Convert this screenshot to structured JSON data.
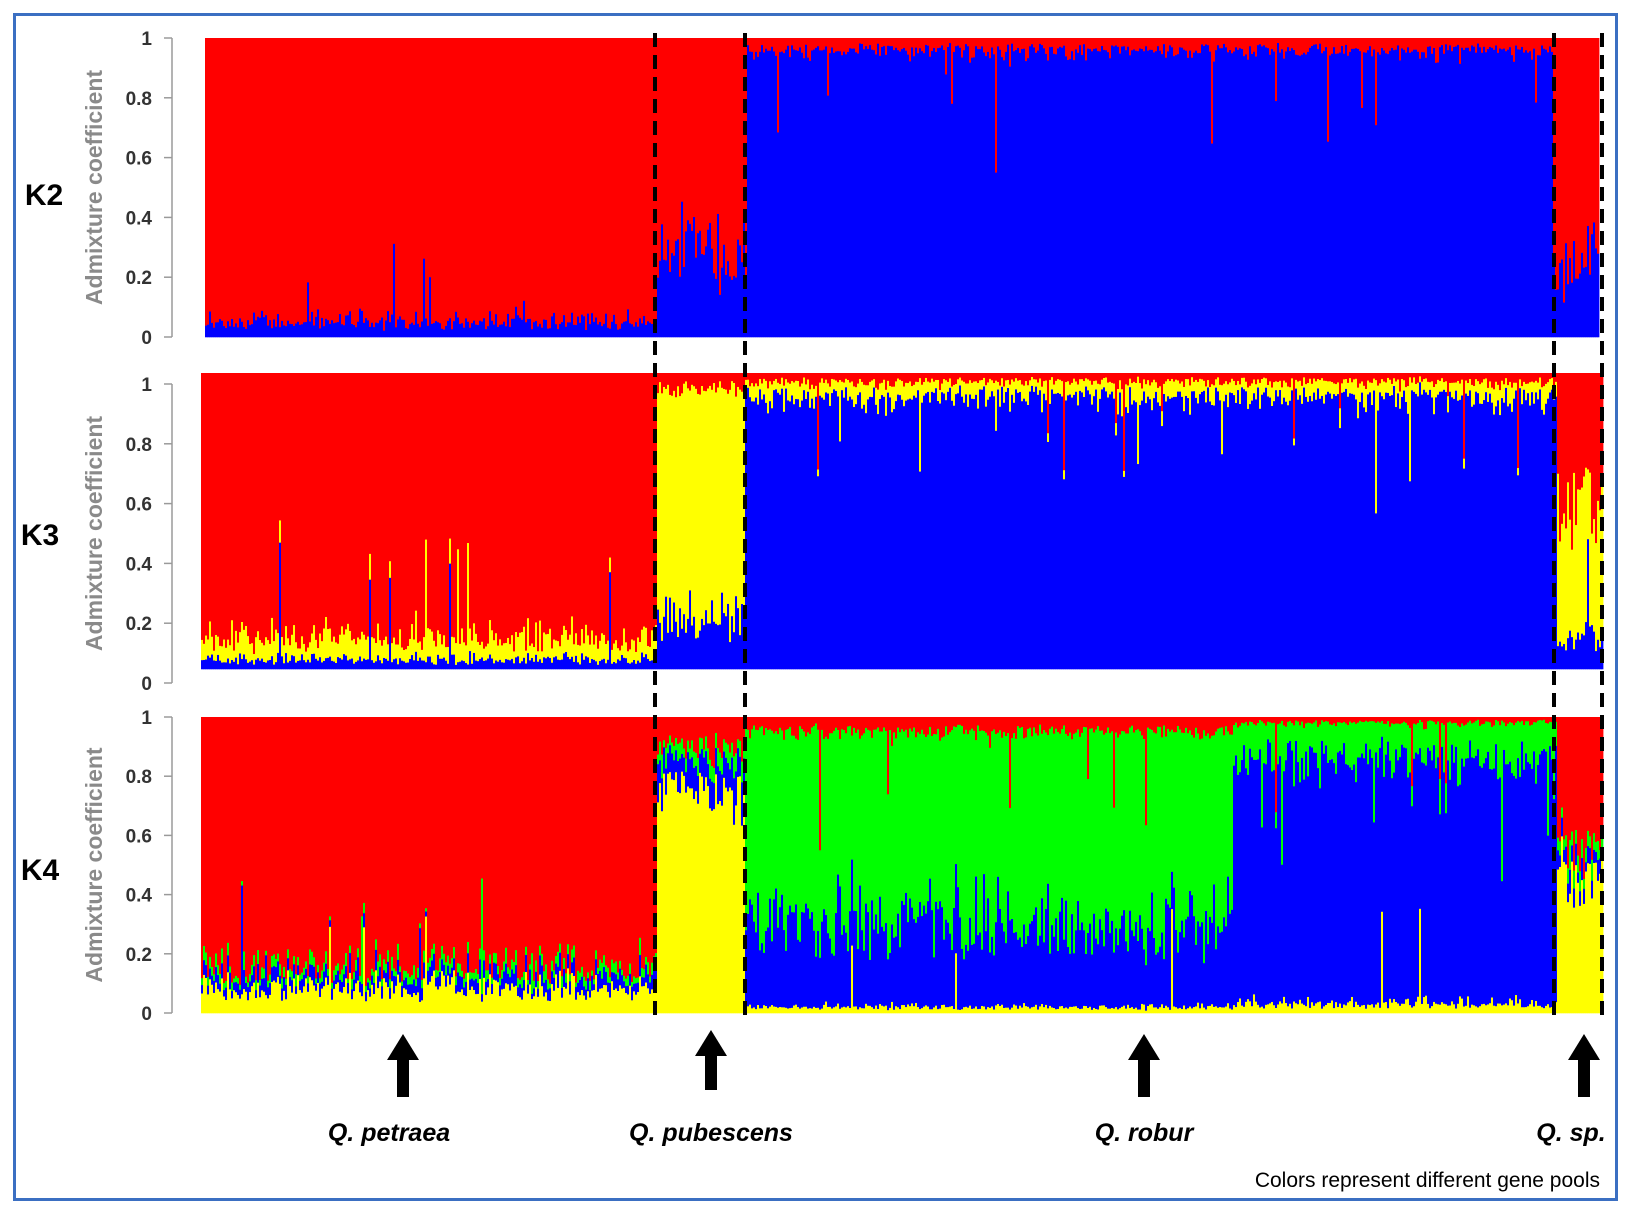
{
  "chart_data": {
    "type": "stacked-bar",
    "description_caption": "Colors represent different gene pools",
    "ylabel": "Admixture coefficient",
    "ylim": [
      0,
      1
    ],
    "yticks": [
      "0",
      "0.2",
      "0.4",
      "0.6",
      "0.8",
      "1"
    ],
    "colors": {
      "red": "#ff0000",
      "blue": "#0000ff",
      "yellow": "#ffff00",
      "green": "#00ff00"
    },
    "groups": [
      {
        "name": "Q. petraea",
        "start": 0.0,
        "end": 0.324
      },
      {
        "name": "Q. pubescens",
        "start": 0.324,
        "end": 0.388
      },
      {
        "name": "Q. robur",
        "start": 0.388,
        "end": 0.966
      },
      {
        "name": "Q. sp.",
        "start": 0.966,
        "end": 1.0
      }
    ],
    "panels": [
      {
        "label": "K2",
        "series": [
          "red",
          "blue"
        ],
        "segments": [
          {
            "group": "Q. petraea",
            "mean": {
              "red": 0.95,
              "blue": 0.05
            }
          },
          {
            "group": "Q. pubescens",
            "mean": {
              "red": 0.72,
              "blue": 0.28
            }
          },
          {
            "group": "Q. robur",
            "mean": {
              "red": 0.04,
              "blue": 0.96
            }
          },
          {
            "group": "Q. sp.",
            "mean": {
              "red": 0.75,
              "blue": 0.25
            }
          }
        ]
      },
      {
        "label": "K3",
        "series": [
          "red",
          "yellow",
          "blue"
        ],
        "segments": [
          {
            "group": "Q. petraea",
            "mean": {
              "red": 0.9,
              "yellow": 0.07,
              "blue": 0.03
            }
          },
          {
            "group": "Q. pubescens",
            "mean": {
              "red": 0.05,
              "yellow": 0.8,
              "blue": 0.15
            }
          },
          {
            "group": "Q. robur",
            "mean": {
              "red": 0.03,
              "yellow": 0.05,
              "blue": 0.92
            }
          },
          {
            "group": "Q. sp.",
            "mean": {
              "red": 0.45,
              "yellow": 0.45,
              "blue": 0.1
            }
          }
        ]
      },
      {
        "label": "K4",
        "series": [
          "red",
          "green",
          "blue",
          "yellow"
        ],
        "segments": [
          {
            "group": "Q. petraea",
            "mean": {
              "red": 0.85,
              "green": 0.03,
              "blue": 0.04,
              "yellow": 0.08
            }
          },
          {
            "group": "Q. pubescens",
            "mean": {
              "red": 0.1,
              "green": 0.05,
              "blue": 0.1,
              "yellow": 0.75
            }
          },
          {
            "group": "Q. robur (left)",
            "mean": {
              "red": 0.05,
              "green": 0.65,
              "blue": 0.28,
              "yellow": 0.02
            }
          },
          {
            "group": "Q. robur (right)",
            "mean": {
              "red": 0.02,
              "green": 0.12,
              "blue": 0.83,
              "yellow": 0.03
            }
          },
          {
            "group": "Q. sp.",
            "mean": {
              "red": 0.45,
              "green": 0.05,
              "blue": 0.05,
              "yellow": 0.45
            }
          }
        ]
      }
    ]
  }
}
